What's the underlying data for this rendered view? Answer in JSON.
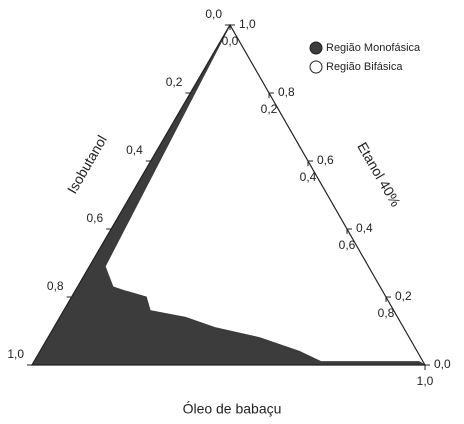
{
  "chart_data": {
    "type": "ternary",
    "bottom_label": "Óleo de babaçu",
    "left_label": "Isobutanol",
    "right_label": "Etanol 40%",
    "oil_ticks": [
      {
        "value": 0,
        "label": "0,0"
      },
      {
        "value": 0.2,
        "label": "0,2"
      },
      {
        "value": 0.4,
        "label": "0,4"
      },
      {
        "value": 0.6,
        "label": "0,6"
      },
      {
        "value": 0.8,
        "label": "0,8"
      },
      {
        "value": 1,
        "label": "1,0"
      }
    ],
    "isobutanol_ticks": [
      {
        "value": 0,
        "label": "0,0"
      },
      {
        "value": 0.2,
        "label": "0,2"
      },
      {
        "value": 0.4,
        "label": "0,4"
      },
      {
        "value": 0.6,
        "label": "0,6"
      },
      {
        "value": 0.8,
        "label": "0,8"
      },
      {
        "value": 1,
        "label": "1,0"
      }
    ],
    "ethanol_ticks": [
      {
        "value": 0,
        "label": "0,0"
      },
      {
        "value": 0.2,
        "label": "0,2"
      },
      {
        "value": 0.4,
        "label": "0,4"
      },
      {
        "value": 0.6,
        "label": "0,6"
      },
      {
        "value": 0.8,
        "label": "0,8"
      },
      {
        "value": 1,
        "label": "1,0"
      }
    ],
    "series": [
      {
        "name": "Região Monofásica",
        "color": "#3c3c3c",
        "oil": [
          0,
          0.04,
          0.09,
          0.12,
          0.19,
          0.22,
          0.32,
          0.41,
          0.54,
          0.66,
          0.73,
          0.98,
          1,
          0
        ],
        "isobutanol": [
          0,
          0.67,
          0.68,
          0.66,
          0.61,
          0.62,
          0.54,
          0.48,
          0.38,
          0.3,
          0.26,
          0.01,
          0,
          1
        ]
      },
      {
        "name": "Região Bifásica",
        "color": "#ffffff"
      }
    ]
  }
}
